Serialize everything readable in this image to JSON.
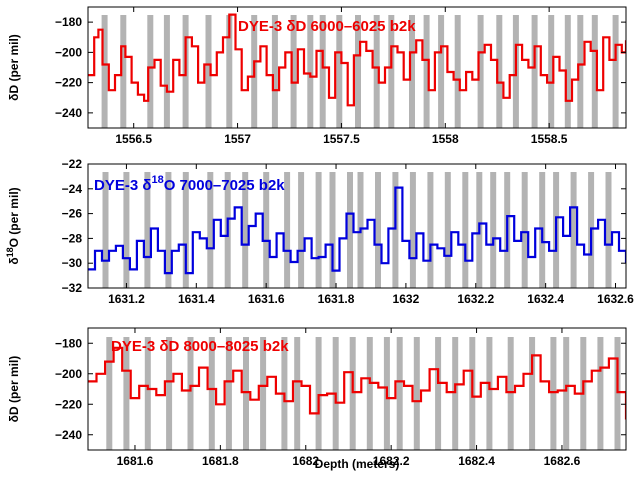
{
  "colors": {
    "red": "#ee0000",
    "blue": "#0000dd",
    "band": "#b3b3b3",
    "axis": "#000000"
  },
  "xlabel": "Depth (meters)",
  "chart_data": [
    {
      "type": "line",
      "title": "DYE-3 δD 6000–6025 b2k",
      "color": "#ee0000",
      "ylabel": "δD (per mil)",
      "xlim": [
        1556.28,
        1558.87
      ],
      "ylim": [
        -250,
        -170
      ],
      "xticks": [
        1556.5,
        1557,
        1557.5,
        1558,
        1558.5
      ],
      "xtick_labels": [
        "1556.5",
        "1557",
        "1557.5",
        "1558",
        "1558.5"
      ],
      "yticks": [
        -240,
        -220,
        -200,
        -180
      ],
      "ytick_labels": [
        "−240",
        "−220",
        "−200",
        "−180"
      ],
      "grid": false,
      "annual_layer_markers": [
        1556.36,
        1556.45,
        1556.58,
        1556.66,
        1556.75,
        1556.86,
        1556.96,
        1557.08,
        1557.18,
        1557.27,
        1557.35,
        1557.41,
        1557.49,
        1557.58,
        1557.67,
        1557.74,
        1557.84,
        1557.91,
        1557.98,
        1558.06,
        1558.17,
        1558.26,
        1558.34,
        1558.43,
        1558.51,
        1558.59,
        1558.65,
        1558.72,
        1558.82
      ],
      "series": [
        {
          "x": [
            1556.28,
            1556.31,
            1556.33,
            1556.35,
            1556.38,
            1556.41,
            1556.44,
            1556.46,
            1556.49,
            1556.52,
            1556.55,
            1556.57,
            1556.6,
            1556.63,
            1556.66,
            1556.69,
            1556.72,
            1556.75,
            1556.78,
            1556.81,
            1556.84,
            1556.87,
            1556.9,
            1556.93,
            1556.96,
            1556.99,
            1557.02,
            1557.05,
            1557.08,
            1557.11,
            1557.14,
            1557.17,
            1557.2,
            1557.23,
            1557.26,
            1557.29,
            1557.32,
            1557.35,
            1557.38,
            1557.41,
            1557.44,
            1557.47,
            1557.5,
            1557.53,
            1557.56,
            1557.59,
            1557.62,
            1557.65,
            1557.68,
            1557.71,
            1557.74,
            1557.77,
            1557.8,
            1557.83,
            1557.86,
            1557.89,
            1557.92,
            1557.95,
            1557.98,
            1558.01,
            1558.04,
            1558.07,
            1558.1,
            1558.13,
            1558.16,
            1558.19,
            1558.22,
            1558.25,
            1558.28,
            1558.31,
            1558.34,
            1558.37,
            1558.4,
            1558.43,
            1558.46,
            1558.49,
            1558.52,
            1558.55,
            1558.58,
            1558.61,
            1558.64,
            1558.67,
            1558.7,
            1558.73,
            1558.76,
            1558.79,
            1558.82,
            1558.85,
            1558.87
          ],
          "y": [
            -215,
            -190,
            -185,
            -208,
            -225,
            -215,
            -196,
            -203,
            -220,
            -228,
            -232,
            -210,
            -205,
            -222,
            -226,
            -205,
            -215,
            -190,
            -196,
            -220,
            -208,
            -215,
            -200,
            -190,
            -175,
            -198,
            -225,
            -216,
            -206,
            -196,
            -215,
            -225,
            -210,
            -200,
            -220,
            -198,
            -214,
            -216,
            -199,
            -210,
            -230,
            -200,
            -207,
            -235,
            -202,
            -193,
            -199,
            -210,
            -220,
            -210,
            -196,
            -200,
            -218,
            -200,
            -192,
            -205,
            -225,
            -200,
            -196,
            -213,
            -218,
            -225,
            -213,
            -218,
            -200,
            -195,
            -205,
            -220,
            -230,
            -215,
            -195,
            -205,
            -210,
            -196,
            -215,
            -220,
            -203,
            -212,
            -232,
            -218,
            -208,
            -193,
            -199,
            -225,
            -190,
            -205,
            -195,
            -200,
            -192
          ]
        }
      ]
    },
    {
      "type": "line",
      "title": "DYE-3 δ18O 7000–7025 b2k",
      "title_parts": {
        "prefix": "DYE-3 δ",
        "sup": "18",
        "suffix": "O 7000–7025 b2k"
      },
      "color": "#0000dd",
      "ylabel": "δ18O (per mil)",
      "ylabel_parts": {
        "prefix": "δ",
        "sup": "18",
        "suffix": "O (per mil)"
      },
      "xlim": [
        1631.09,
        1632.63
      ],
      "ylim": [
        -32,
        -22
      ],
      "xticks": [
        1631.2,
        1631.4,
        1631.6,
        1631.8,
        1632,
        1632.2,
        1632.4,
        1632.6
      ],
      "xtick_labels": [
        "1631.2",
        "1631.4",
        "1631.6",
        "1631.8",
        "1632",
        "1632.2",
        "1632.4",
        "1632.6"
      ],
      "yticks": [
        -32,
        -30,
        -28,
        -26,
        -24,
        -22
      ],
      "ytick_labels": [
        "−32",
        "−30",
        "−28",
        "−26",
        "−24",
        "−22"
      ],
      "grid": false,
      "annual_layer_markers": [
        1631.14,
        1631.2,
        1631.26,
        1631.32,
        1631.37,
        1631.44,
        1631.49,
        1631.54,
        1631.6,
        1631.66,
        1631.7,
        1631.75,
        1631.79,
        1631.84,
        1631.87,
        1631.92,
        1631.97,
        1632.02,
        1632.07,
        1632.12,
        1632.17,
        1632.21,
        1632.25,
        1632.29,
        1632.34,
        1632.39,
        1632.43,
        1632.48,
        1632.53,
        1632.58
      ],
      "series": [
        {
          "x": [
            1631.09,
            1631.11,
            1631.13,
            1631.15,
            1631.17,
            1631.19,
            1631.21,
            1631.23,
            1631.25,
            1631.27,
            1631.29,
            1631.31,
            1631.33,
            1631.35,
            1631.37,
            1631.39,
            1631.41,
            1631.43,
            1631.45,
            1631.47,
            1631.49,
            1631.51,
            1631.53,
            1631.55,
            1631.57,
            1631.59,
            1631.61,
            1631.63,
            1631.65,
            1631.67,
            1631.69,
            1631.71,
            1631.73,
            1631.75,
            1631.77,
            1631.79,
            1631.81,
            1631.83,
            1631.85,
            1631.87,
            1631.89,
            1631.91,
            1631.93,
            1631.95,
            1631.97,
            1631.99,
            1632.01,
            1632.03,
            1632.05,
            1632.07,
            1632.09,
            1632.11,
            1632.13,
            1632.15,
            1632.17,
            1632.19,
            1632.21,
            1632.23,
            1632.25,
            1632.27,
            1632.29,
            1632.31,
            1632.33,
            1632.35,
            1632.37,
            1632.39,
            1632.41,
            1632.43,
            1632.45,
            1632.47,
            1632.49,
            1632.51,
            1632.53,
            1632.55,
            1632.57,
            1632.59,
            1632.61,
            1632.63
          ],
          "y": [
            -30.5,
            -29,
            -29.8,
            -29,
            -28.6,
            -29.6,
            -30.5,
            -28.2,
            -29.5,
            -27.2,
            -29,
            -30.8,
            -29,
            -28.5,
            -30.8,
            -27.5,
            -28,
            -28.8,
            -26.5,
            -27.8,
            -26.4,
            -25.5,
            -28.5,
            -27,
            -26,
            -28.2,
            -29.5,
            -27.6,
            -29,
            -29.9,
            -29,
            -28,
            -29.6,
            -29.5,
            -28.5,
            -30.6,
            -28,
            -26,
            -27.5,
            -27.2,
            -26.5,
            -28.5,
            -30,
            -27.2,
            -23.9,
            -28.2,
            -29.6,
            -27.6,
            -29.8,
            -28.5,
            -28.8,
            -29.4,
            -27.5,
            -28.5,
            -29.8,
            -27.6,
            -26.8,
            -28.5,
            -28,
            -29,
            -26.2,
            -28.2,
            -27.5,
            -29.5,
            -27.2,
            -28.3,
            -29,
            -26.3,
            -27.8,
            -25.5,
            -28.5,
            -29.3,
            -27.2,
            -26.5,
            -28.5,
            -27.5,
            -29,
            -30
          ]
        }
      ]
    },
    {
      "type": "line",
      "title": "DYE-3 δD 8000–8025 b2k",
      "color": "#ee0000",
      "ylabel": "δD (per mil)",
      "xlim": [
        1681.49,
        1682.75
      ],
      "ylim": [
        -250,
        -170
      ],
      "xticks": [
        1681.6,
        1681.8,
        1682,
        1682.2,
        1682.4,
        1682.6
      ],
      "xtick_labels": [
        "1681.6",
        "1681.8",
        "1682",
        "1682.2",
        "1682.4",
        "1682.6"
      ],
      "yticks": [
        -240,
        -220,
        -200,
        -180
      ],
      "ytick_labels": [
        "−240",
        "−220",
        "−200",
        "−180"
      ],
      "grid": false,
      "annual_layer_markers": [
        1681.54,
        1681.58,
        1681.63,
        1681.68,
        1681.73,
        1681.78,
        1681.82,
        1681.86,
        1681.9,
        1681.95,
        1681.98,
        1682.03,
        1682.07,
        1682.11,
        1682.15,
        1682.19,
        1682.22,
        1682.26,
        1682.31,
        1682.35,
        1682.39,
        1682.43,
        1682.48,
        1682.53,
        1682.58,
        1682.61,
        1682.65,
        1682.69,
        1682.73
      ],
      "series": [
        {
          "x": [
            1681.49,
            1681.51,
            1681.53,
            1681.55,
            1681.57,
            1681.59,
            1681.61,
            1681.63,
            1681.65,
            1681.67,
            1681.69,
            1681.71,
            1681.73,
            1681.75,
            1681.77,
            1681.79,
            1681.81,
            1681.83,
            1681.85,
            1681.87,
            1681.89,
            1681.91,
            1681.93,
            1681.95,
            1681.97,
            1681.99,
            1682.01,
            1682.03,
            1682.05,
            1682.07,
            1682.09,
            1682.11,
            1682.13,
            1682.15,
            1682.17,
            1682.19,
            1682.21,
            1682.23,
            1682.25,
            1682.27,
            1682.29,
            1682.31,
            1682.33,
            1682.35,
            1682.37,
            1682.39,
            1682.41,
            1682.43,
            1682.45,
            1682.47,
            1682.49,
            1682.51,
            1682.53,
            1682.55,
            1682.57,
            1682.59,
            1682.61,
            1682.63,
            1682.65,
            1682.67,
            1682.69,
            1682.71,
            1682.73,
            1682.75
          ],
          "y": [
            -205,
            -200,
            -192,
            -183,
            -198,
            -216,
            -208,
            -210,
            -214,
            -205,
            -200,
            -211,
            -208,
            -196,
            -210,
            -220,
            -205,
            -198,
            -212,
            -217,
            -208,
            -202,
            -213,
            -218,
            -205,
            -208,
            -226,
            -214,
            -213,
            -219,
            -199,
            -212,
            -203,
            -206,
            -209,
            -216,
            -205,
            -208,
            -218,
            -211,
            -197,
            -206,
            -212,
            -207,
            -198,
            -215,
            -206,
            -210,
            -202,
            -212,
            -208,
            -200,
            -188,
            -205,
            -212,
            -211,
            -208,
            -213,
            -205,
            -198,
            -196,
            -190,
            -212,
            -230
          ]
        }
      ]
    }
  ]
}
